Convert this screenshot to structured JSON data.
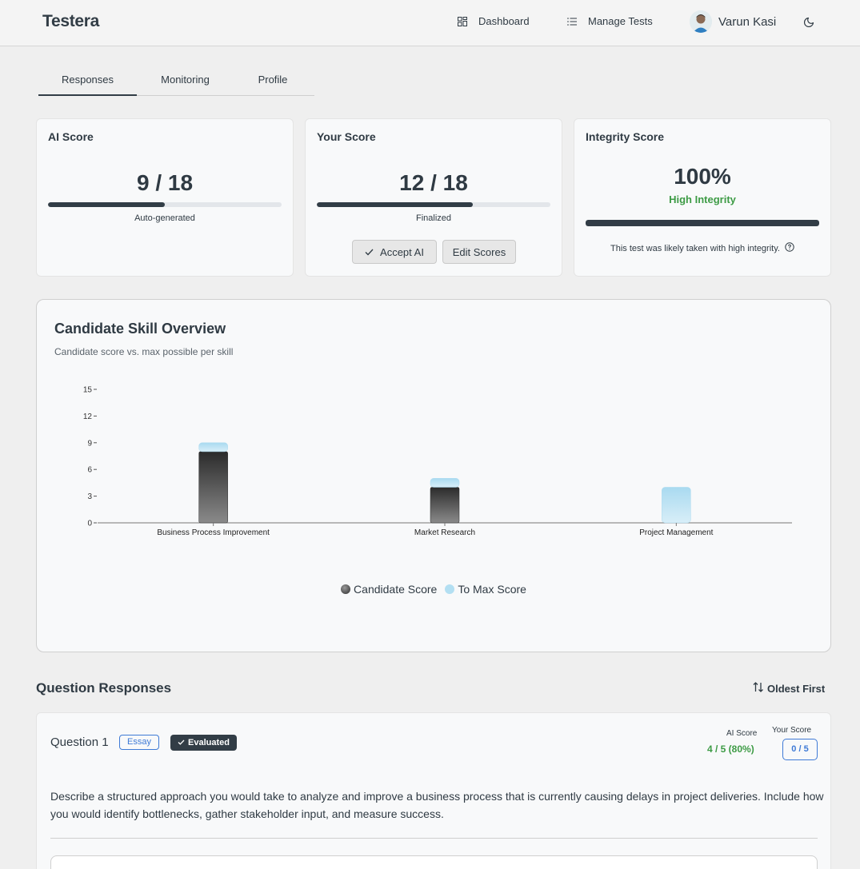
{
  "header": {
    "brand": "Testera",
    "nav": [
      {
        "label": "Dashboard",
        "icon": "dashboard-icon"
      },
      {
        "label": "Manage Tests",
        "icon": "list-icon"
      }
    ],
    "user_name": "Varun Kasi",
    "theme_icon": "moon-icon"
  },
  "tabs": [
    {
      "label": "Responses",
      "active": true
    },
    {
      "label": "Monitoring",
      "active": false
    },
    {
      "label": "Profile",
      "active": false
    }
  ],
  "ai_score": {
    "title": "AI Score",
    "value": "9 / 18",
    "progress": 0.5,
    "caption": "Auto-generated"
  },
  "your_score": {
    "title": "Your Score",
    "value": "12 / 18",
    "progress": 0.667,
    "caption": "Finalized",
    "accept_label": "Accept AI",
    "edit_label": "Edit Scores"
  },
  "integrity": {
    "title": "Integrity Score",
    "value": "100%",
    "status": "High Integrity",
    "progress": 1.0,
    "note": "This test was likely taken with high integrity."
  },
  "chart_data": {
    "type": "bar",
    "title": "Candidate Skill Overview",
    "subtitle": "Candidate score vs. max possible per skill",
    "categories": [
      "Business Process Improvement",
      "Market Research",
      "Project Management"
    ],
    "series": [
      {
        "name": "Candidate Score",
        "values": [
          8,
          4,
          0
        ],
        "color": "#3a3a3a"
      },
      {
        "name": "To Max Score",
        "values": [
          1,
          1,
          4
        ],
        "color": "#b3dff2"
      }
    ],
    "stacked": true,
    "y_ticks": [
      0,
      3,
      6,
      9,
      12,
      15
    ],
    "ylim": [
      0,
      15
    ],
    "legend_position": "bottom-center"
  },
  "questions": {
    "section_title": "Question Responses",
    "sort_label": "Oldest First",
    "items": [
      {
        "title": "Question 1",
        "type": "Essay",
        "status": "Evaluated",
        "ai_label": "AI Score",
        "ai_value": "4 / 5 (80%)",
        "your_label": "Your Score",
        "your_value": "0 / 5",
        "text": "Describe a structured approach you would take to analyze and improve a business process that is currently causing delays in project deliveries. Include how you would identify bottlenecks, gather stakeholder input, and measure success."
      }
    ]
  }
}
